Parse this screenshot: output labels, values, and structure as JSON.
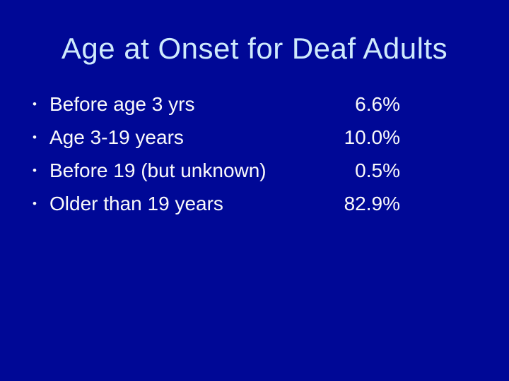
{
  "slide": {
    "title": "Age at Onset for Deaf Adults",
    "bullet_char": "•",
    "rows": [
      {
        "label": "Before age 3 yrs",
        "value": "6.6%"
      },
      {
        "label": "Age 3-19 years",
        "value": "10.0%"
      },
      {
        "label": "Before 19 (but unknown)",
        "value": "0.5%"
      },
      {
        "label": "Older than 19 years",
        "value": "82.9%"
      }
    ],
    "colors": {
      "background": "#000896",
      "title_text": "#CFEAFC",
      "body_text": "#FAFAFA"
    }
  }
}
